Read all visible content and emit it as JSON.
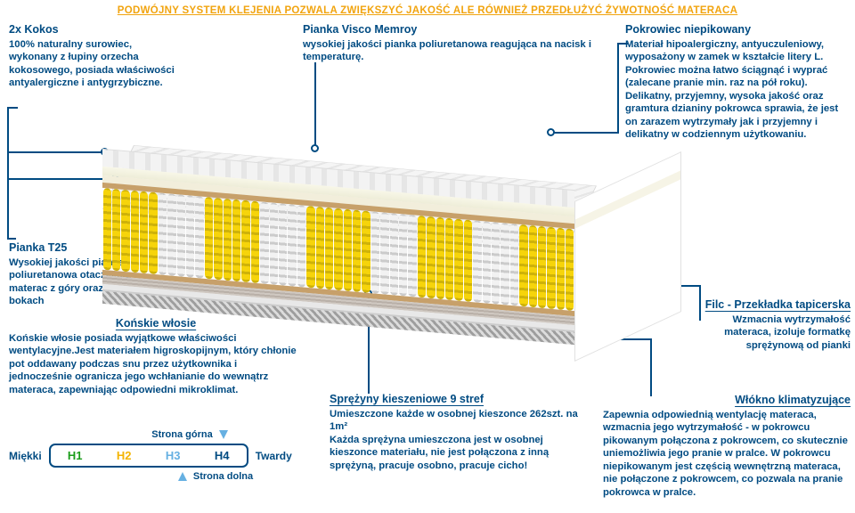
{
  "banner": {
    "text": "PODWÓJNY SYSTEM KLEJENIA POZWALA ZWIĘKSZYĆ JAKOŚĆ ALE RÓWNIEŻ PRZEDŁUŻYĆ ŻYWOTNOŚĆ MATERACA",
    "color": "#f1a40f"
  },
  "labels": {
    "kokos": {
      "title": "2x Kokos",
      "text": "100% naturalny surowiec, wykonany z łupiny orzecha kokosowego, posiada właściwości antyalergiczne i antygrzybiczne."
    },
    "visco": {
      "title": "Pianka Visco Memroy",
      "text": "wysokiej jakości pianka poliuretanowa reagująca na nacisk i temperaturę."
    },
    "cover": {
      "title": "Pokrowiec niepikowany",
      "text": "Materiał hipoalergiczny, antyuczuleniowy, wyposażony w zamek w kształcie litery L. Pokrowiec można łatwo ściągnąć i wyprać (zalecane pranie min. raz na pół roku). Delikatny, przyjemny, wysoka jakość oraz gramtura dzianiny pokrowca sprawia, że jest on zarazem wytrzymały jak i przyjemny i delikatny w codziennym użytkowaniu."
    },
    "t25": {
      "title": "Pianka T25",
      "text": "Wysokiej jakości pianka poliuretanowa otaczająca materac z góry oraz po bokach"
    },
    "horsehair": {
      "title": "Końskie włosie",
      "text": "Końskie włosie posiada wyjątkowe właściwości wentylacyjne.Jest materiałem higroskopijnym, który chłonie pot oddawany podczas snu przez użytkownika i jednocześnie ogranicza jego wchłanianie do wewnątrz materaca, zapewniając odpowiedni mikroklimat."
    },
    "springs": {
      "title": "Sprężyny kieszeniowe 9 stref",
      "text1": "Umieszczone każde w osobnej kieszonce 262szt. na 1m²",
      "text2": "Każda sprężyna umieszczona jest w osobnej kieszonce materiału, nie jest połączona z inną sprężyną, pracuje osobno, pracuje cicho!"
    },
    "felt": {
      "title": "Filc - Przekładka tapicerska",
      "text": "Wzmacnia wytrzymałość materaca, izoluje formatkę sprężynową od pianki"
    },
    "fiber": {
      "title": "Włókno klimatyzujące",
      "text": "Zapewnia odpowiednią wentylację materaca, wzmacnia jego wytrzymałość - w pokrowcu pikowanym połączona z pokrowcem, co skutecznie uniemożliwia jego pranie w pralce. W pokrowcu niepikowanym jest częścią wewnętrzną materaca, nie połączone z pokrowcem, co pozwala na pranie pokrowca w pralce."
    }
  },
  "hardness": {
    "top_label": "Strona górna",
    "bottom_label": "Strona dolna",
    "soft_label": "Miękki",
    "hard_label": "Twardy",
    "cells": [
      "H1",
      "H2",
      "H3",
      "H4"
    ]
  },
  "mattress": {
    "zones": [
      {
        "color": "yellow",
        "springs": 6
      },
      {
        "color": "white",
        "springs": 5
      },
      {
        "color": "yellow",
        "springs": 6
      },
      {
        "color": "white",
        "springs": 5
      },
      {
        "color": "yellow",
        "springs": 7
      },
      {
        "color": "white",
        "springs": 5
      },
      {
        "color": "yellow",
        "springs": 6
      },
      {
        "color": "white",
        "springs": 5
      },
      {
        "color": "yellow",
        "springs": 6
      }
    ],
    "colors": {
      "spring_yellow": "#f6d40b",
      "spring_white": "#f2f2f2",
      "kokos": "#c7a06a",
      "leader": "#004b82"
    }
  }
}
